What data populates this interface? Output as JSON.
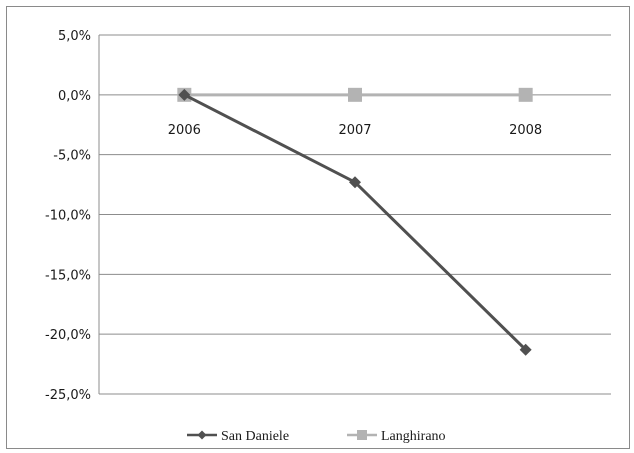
{
  "chart_data": {
    "type": "line",
    "title": "",
    "xlabel": "",
    "ylabel": "",
    "categories": [
      "2006",
      "2007",
      "2008"
    ],
    "ylim": [
      -25,
      5
    ],
    "y_ticks": [
      5,
      0,
      -5,
      -10,
      -15,
      -20,
      -25
    ],
    "y_tick_labels": [
      "5,0%",
      "0,0%",
      "-5,0%",
      "-10,0%",
      "-15,0%",
      "-20,0%",
      "-25,0%"
    ],
    "grid": true,
    "legend_position": "bottom",
    "category_labels_at": "zero-line",
    "series": [
      {
        "name": "San Daniele",
        "values": [
          0,
          -7.3,
          -21.3
        ],
        "color": "#505050",
        "marker": "diamond"
      },
      {
        "name": "Langhirano",
        "values": [
          0,
          0,
          0
        ],
        "color": "#b3b3b3",
        "marker": "square"
      }
    ]
  }
}
